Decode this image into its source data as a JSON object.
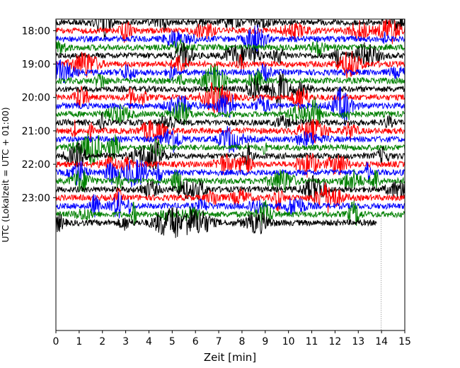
{
  "chart_data": {
    "type": "line",
    "title": "",
    "xlabel": "Zeit  [min]",
    "ylabel": "UTC (Lokalzeit = UTC + 01:00)",
    "xlim": [
      0,
      15
    ],
    "x_ticks": [
      "0",
      "1",
      "2",
      "3",
      "4",
      "5",
      "6",
      "7",
      "8",
      "9",
      "10",
      "11",
      "12",
      "13",
      "14",
      "15"
    ],
    "y_ticks": [
      "18:00",
      "19:00",
      "20:00",
      "21:00",
      "22:00",
      "23:00"
    ],
    "trace_interval_minutes": 15,
    "trace_start": "17:45",
    "trace_end": "23:45",
    "trace_colors": [
      "#000000",
      "#ff0000",
      "#0000ff",
      "#008000"
    ],
    "last_trace_end_minute": 13.8,
    "grid": false,
    "legend": "none"
  }
}
